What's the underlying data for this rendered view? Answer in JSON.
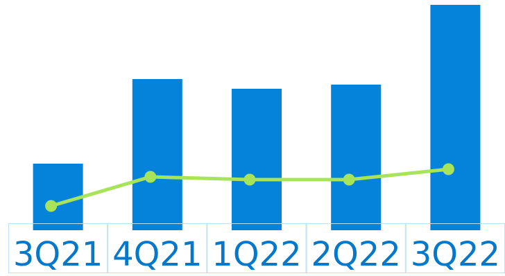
{
  "colors": {
    "bar": "#0583DB",
    "line": "#A8E45A",
    "label_text": "#0578C9",
    "cell_border": "#BFE0F3"
  },
  "chart_data": {
    "type": "bar",
    "title": "",
    "xlabel": "",
    "ylabel": "",
    "grid": false,
    "legend": "none",
    "categories": [
      "3Q21",
      "4Q21",
      "1Q22",
      "2Q22",
      "3Q22"
    ],
    "ylim": [
      0,
      325
    ],
    "series": [
      {
        "kind": "bar",
        "values": [
          96,
          218,
          204,
          210,
          325
        ]
      },
      {
        "kind": "line",
        "values": [
          35,
          77,
          73,
          73,
          88
        ]
      }
    ]
  }
}
